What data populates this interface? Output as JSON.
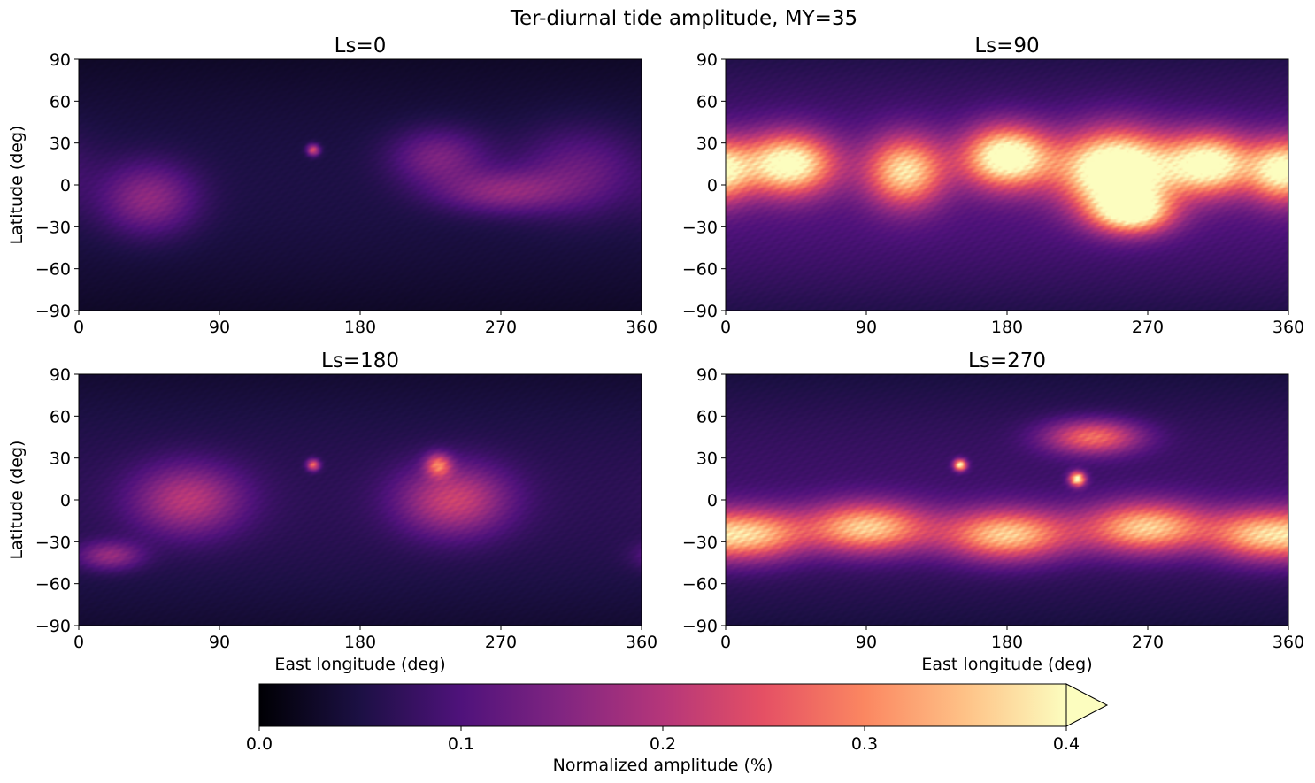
{
  "figure": {
    "suptitle": "Ter-diurnal tide amplitude, MY=35"
  },
  "chart_data": [
    {
      "type": "heatmap",
      "title": "Ls=0",
      "xlabel": "",
      "ylabel": "Latitude (deg)",
      "xlim": [
        0,
        360
      ],
      "ylim": [
        -90,
        90
      ],
      "xticks": [
        "0",
        "90",
        "180",
        "270",
        "360"
      ],
      "yticks": [
        "90",
        "60",
        "30",
        "0",
        "−30",
        "−60",
        "−90"
      ],
      "colormap": "magma",
      "hotspots": [
        {
          "lon": 45,
          "lat": -10,
          "amp": 0.12,
          "rlon": 30,
          "rlat": 25
        },
        {
          "lon": 230,
          "lat": 20,
          "amp": 0.1,
          "rlon": 30,
          "rlat": 20
        },
        {
          "lon": 270,
          "lat": -5,
          "amp": 0.11,
          "rlon": 40,
          "rlat": 15
        },
        {
          "lon": 150,
          "lat": 25,
          "amp": 0.2,
          "rlon": 4,
          "rlat": 4
        },
        {
          "lon": 320,
          "lat": 10,
          "amp": 0.08,
          "rlon": 40,
          "rlat": 30
        }
      ],
      "background": 0.055
    },
    {
      "type": "heatmap",
      "title": "Ls=90",
      "xlabel": "",
      "ylabel": "",
      "xlim": [
        0,
        360
      ],
      "ylim": [
        -90,
        90
      ],
      "xticks": [
        "0",
        "90",
        "180",
        "270",
        "360"
      ],
      "yticks": [
        "90",
        "60",
        "30",
        "0",
        "−30",
        "−60",
        "−90"
      ],
      "colormap": "magma",
      "hotspots": [
        {
          "lon": 40,
          "lat": 15,
          "amp": 0.36,
          "rlon": 30,
          "rlat": 22
        },
        {
          "lon": 115,
          "lat": 10,
          "amp": 0.3,
          "rlon": 25,
          "rlat": 25
        },
        {
          "lon": 180,
          "lat": 20,
          "amp": 0.38,
          "rlon": 28,
          "rlat": 22
        },
        {
          "lon": 250,
          "lat": 10,
          "amp": 0.45,
          "rlon": 35,
          "rlat": 28
        },
        {
          "lon": 310,
          "lat": 15,
          "amp": 0.35,
          "rlon": 28,
          "rlat": 22
        },
        {
          "lon": 355,
          "lat": 10,
          "amp": 0.3,
          "rlon": 20,
          "rlat": 22
        },
        {
          "lon": 260,
          "lat": -20,
          "amp": 0.3,
          "rlon": 25,
          "rlat": 15
        }
      ],
      "background": 0.11
    },
    {
      "type": "heatmap",
      "title": "Ls=180",
      "xlabel": "East longitude (deg)",
      "ylabel": "Latitude (deg)",
      "xlim": [
        0,
        360
      ],
      "ylim": [
        -90,
        90
      ],
      "xticks": [
        "0",
        "90",
        "180",
        "270",
        "360"
      ],
      "yticks": [
        "90",
        "60",
        "30",
        "0",
        "−30",
        "−60",
        "−90"
      ],
      "colormap": "magma",
      "hotspots": [
        {
          "lon": 70,
          "lat": 0,
          "amp": 0.15,
          "rlon": 35,
          "rlat": 25
        },
        {
          "lon": 240,
          "lat": 0,
          "amp": 0.17,
          "rlon": 35,
          "rlat": 25
        },
        {
          "lon": 230,
          "lat": 25,
          "amp": 0.2,
          "rlon": 8,
          "rlat": 8
        },
        {
          "lon": 150,
          "lat": 25,
          "amp": 0.22,
          "rlon": 4,
          "rlat": 4
        },
        {
          "lon": 20,
          "lat": -40,
          "amp": 0.12,
          "rlon": 20,
          "rlat": 10
        }
      ],
      "background": 0.07
    },
    {
      "type": "heatmap",
      "title": "Ls=270",
      "xlabel": "East longitude (deg)",
      "ylabel": "",
      "xlim": [
        0,
        360
      ],
      "ylim": [
        -90,
        90
      ],
      "xticks": [
        "0",
        "90",
        "180",
        "270",
        "360"
      ],
      "yticks": [
        "90",
        "60",
        "30",
        "0",
        "−30",
        "−60",
        "−90"
      ],
      "colormap": "magma",
      "hotspots": [
        {
          "lon": 90,
          "lat": -20,
          "amp": 0.3,
          "rlon": 40,
          "rlat": 18
        },
        {
          "lon": 180,
          "lat": -25,
          "amp": 0.3,
          "rlon": 40,
          "rlat": 18
        },
        {
          "lon": 270,
          "lat": -20,
          "amp": 0.3,
          "rlon": 40,
          "rlat": 18
        },
        {
          "lon": 20,
          "lat": -25,
          "amp": 0.25,
          "rlon": 30,
          "rlat": 18
        },
        {
          "lon": 340,
          "lat": -25,
          "amp": 0.25,
          "rlon": 30,
          "rlat": 18
        },
        {
          "lon": 235,
          "lat": 45,
          "amp": 0.22,
          "rlon": 30,
          "rlat": 12
        },
        {
          "lon": 150,
          "lat": 25,
          "amp": 0.35,
          "rlon": 4,
          "rlat": 4
        },
        {
          "lon": 225,
          "lat": 15,
          "amp": 0.35,
          "rlon": 5,
          "rlat": 5
        }
      ],
      "background": 0.09
    }
  ],
  "colorbar": {
    "label": "Normalized amplitude (%)",
    "ticks": [
      "0.0",
      "0.1",
      "0.2",
      "0.3",
      "0.4"
    ],
    "range": [
      0,
      0.4
    ],
    "extend": "max"
  }
}
